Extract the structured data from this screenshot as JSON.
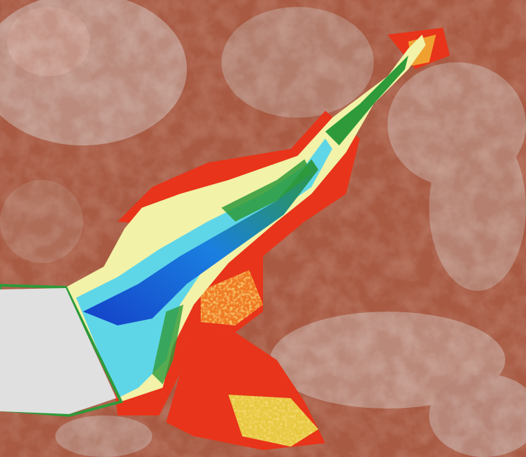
{
  "map": {
    "type": "elevation-bathymetry-raster",
    "palette": {
      "highland": "#e6e6e6",
      "upland": "#b9aaa2",
      "slope": "#a85a42",
      "valley": "#8c3020",
      "lowland_red": "#e8341a",
      "lowland_orange": "#f07a20",
      "lowland_yellow": "#e8c840",
      "shallow_green": "#2e9a3a",
      "tidal_flat": "#f2f2a8",
      "shallow_cyan": "#5fd6e8",
      "channel_blue": "#1a7fe0",
      "deep_blue": "#1440c8",
      "nodata": "#e0e0e0"
    }
  }
}
